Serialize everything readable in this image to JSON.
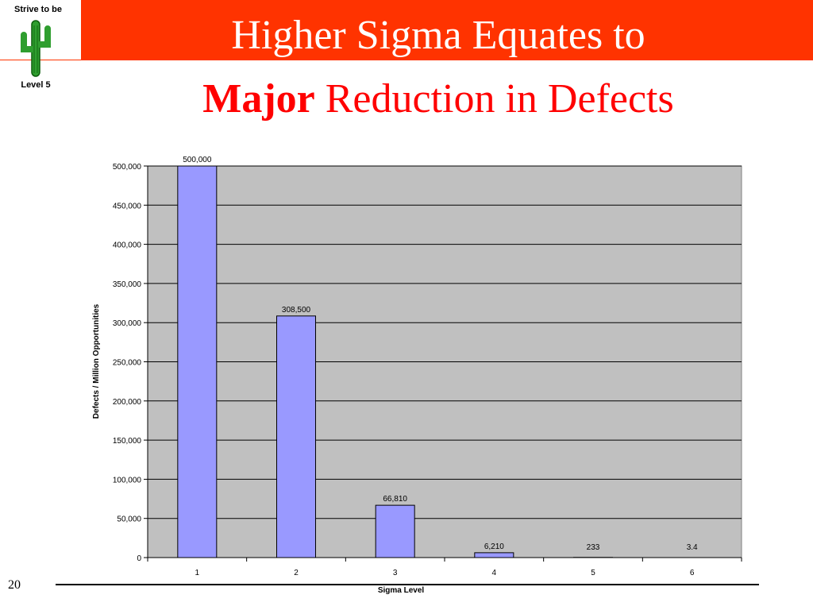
{
  "logo": {
    "top_text": "Strive to be",
    "bottom_text": "Level 5",
    "icon": "cactus-icon"
  },
  "title": {
    "line1": "Higher Sigma Equates to",
    "line2_bold": "Major",
    "line2_rest": " Reduction in Defects"
  },
  "page_number": "20",
  "colors": {
    "title_bar": "#ff3300",
    "title_text_line1": "#ffffff",
    "title_text_line2": "#ff0000",
    "plot_area": "#c0c0c0",
    "bar_fill": "#9999ff"
  },
  "chart_data": {
    "type": "bar",
    "categories": [
      "1",
      "2",
      "3",
      "4",
      "5",
      "6"
    ],
    "values": [
      500000,
      308500,
      66810,
      6210,
      233,
      3.4
    ],
    "data_labels": [
      "500,000",
      "308,500",
      "66,810",
      "6,210",
      "233",
      "3.4"
    ],
    "xlabel": "Sigma Level",
    "ylabel": "Defects / Million Opportunities",
    "ylim": [
      0,
      500000
    ],
    "yticks": [
      0,
      50000,
      100000,
      150000,
      200000,
      250000,
      300000,
      350000,
      400000,
      450000,
      500000
    ],
    "ytick_labels": [
      "0",
      "50,000",
      "100,000",
      "150,000",
      "200,000",
      "250,000",
      "300,000",
      "350,000",
      "400,000",
      "450,000",
      "500,000"
    ],
    "grid": true,
    "legend": false
  }
}
